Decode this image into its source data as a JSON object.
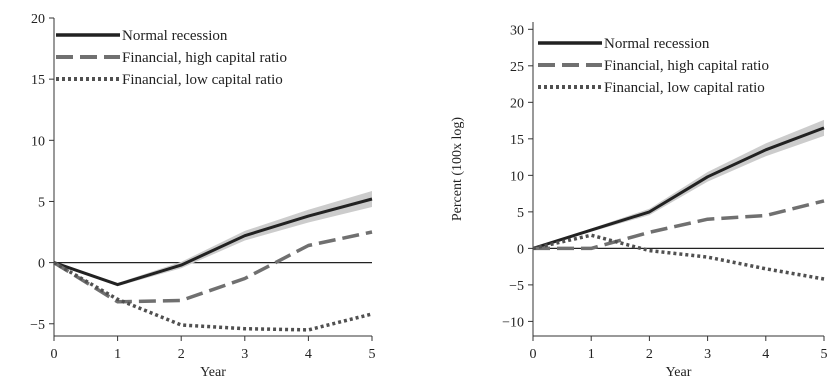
{
  "chart_data": [
    {
      "type": "line",
      "title": "",
      "xlabel": "Year",
      "ylabel": "",
      "xlim": [
        0,
        5
      ],
      "ylim": [
        -6,
        20
      ],
      "xticks": [
        0,
        1,
        2,
        3,
        4,
        5
      ],
      "yticks": [
        -5,
        0,
        5,
        10,
        15,
        20
      ],
      "ytick_labels": [
        "−5",
        "0",
        "5",
        "10",
        "15",
        "20"
      ],
      "grid": false,
      "legend_position": "top-left",
      "zero_line": true,
      "x": [
        0,
        1,
        2,
        3,
        4,
        5
      ],
      "series": [
        {
          "name": "Normal recession",
          "values": [
            0,
            -1.8,
            -0.2,
            2.2,
            3.8,
            5.2
          ],
          "style": "solid",
          "color": "#222222",
          "band": true
        },
        {
          "name": "Financial, high capital ratio",
          "values": [
            0,
            -3.2,
            -3.1,
            -1.3,
            1.4,
            2.5
          ],
          "style": "dashed",
          "color": "#707070"
        },
        {
          "name": "Financial, low capital ratio",
          "values": [
            0,
            -3.0,
            -5.1,
            -5.4,
            -5.5,
            -4.2
          ],
          "style": "dotted",
          "color": "#505050"
        }
      ]
    },
    {
      "type": "line",
      "title": "",
      "xlabel": "Year",
      "ylabel": "Percent (100x log)",
      "xlim": [
        0,
        5
      ],
      "ylim": [
        -12,
        31
      ],
      "xticks": [
        0,
        1,
        2,
        3,
        4,
        5
      ],
      "yticks": [
        -10,
        -5,
        0,
        5,
        10,
        15,
        20,
        25,
        30
      ],
      "ytick_labels": [
        "−10",
        "−5",
        "0",
        "5",
        "10",
        "15",
        "20",
        "25",
        "30"
      ],
      "grid": false,
      "legend_position": "top-left",
      "zero_line": true,
      "x": [
        0,
        1,
        2,
        3,
        4,
        5
      ],
      "series": [
        {
          "name": "Normal recession",
          "values": [
            0,
            2.5,
            5.0,
            9.8,
            13.5,
            16.5
          ],
          "style": "solid",
          "color": "#222222",
          "band": true
        },
        {
          "name": "Financial, high capital ratio",
          "values": [
            0,
            0,
            2.2,
            4.0,
            4.5,
            6.5
          ],
          "style": "dashed",
          "color": "#707070"
        },
        {
          "name": "Financial, low capital ratio",
          "values": [
            0,
            1.8,
            -0.3,
            -1.2,
            -2.8,
            -4.2
          ],
          "style": "dotted",
          "color": "#505050"
        }
      ]
    }
  ]
}
